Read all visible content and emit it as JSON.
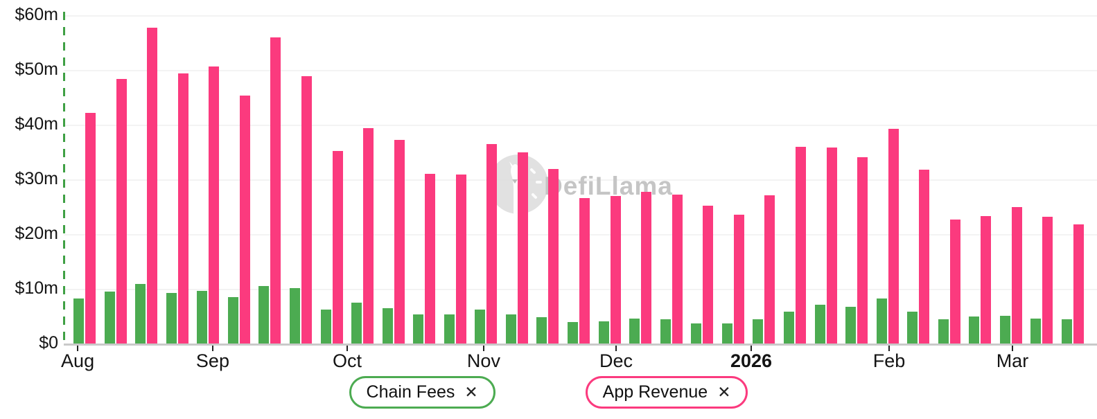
{
  "watermark": {
    "brand": "DefiLlama"
  },
  "legend": {
    "items": [
      {
        "label": "Chain Fees",
        "remove_symbol": "✕",
        "color": "#4cab51"
      },
      {
        "label": "App Revenue",
        "remove_symbol": "✕",
        "color": "#fb3a7e"
      }
    ]
  },
  "chart_data": {
    "type": "bar",
    "title": "",
    "unit": "USD millions per week",
    "ylim": [
      0,
      60
    ],
    "y_tick_labels": [
      "$0",
      "$10m",
      "$20m",
      "$30m",
      "$40m",
      "$50m",
      "$60m"
    ],
    "grid": "horizontal",
    "legend_position": "bottom",
    "x_description": "weekly bars from Aug to Mar; month ticks below axis",
    "month_ticks": [
      {
        "label": "Aug",
        "x_pct": 7.08,
        "bold": false
      },
      {
        "label": "Sep",
        "x_pct": 19.39,
        "bold": false
      },
      {
        "label": "Oct",
        "x_pct": 31.65,
        "bold": false
      },
      {
        "label": "Nov",
        "x_pct": 44.09,
        "bold": false
      },
      {
        "label": "Dec",
        "x_pct": 56.16,
        "bold": false
      },
      {
        "label": "2026",
        "x_pct": 68.48,
        "bold": true
      },
      {
        "label": "Feb",
        "x_pct": 81.05,
        "bold": false
      },
      {
        "label": "Mar",
        "x_pct": 92.29,
        "bold": false
      }
    ],
    "series": [
      {
        "name": "Chain Fees",
        "color": "#4cab51",
        "values": [
          8.3,
          9.6,
          11.0,
          9.4,
          9.8,
          8.6,
          10.6,
          10.2,
          6.3,
          7.6,
          6.6,
          5.4,
          5.5,
          6.3,
          5.5,
          4.9,
          4.0,
          4.2,
          4.7,
          4.5,
          3.8,
          3.8,
          4.6,
          5.9,
          7.2,
          6.8,
          8.3,
          5.9,
          4.6,
          5.1,
          5.2,
          4.7,
          4.6
        ]
      },
      {
        "name": "App Revenue",
        "color": "#fb3a7e",
        "values": [
          42.3,
          48.5,
          57.9,
          49.5,
          50.8,
          45.5,
          56.1,
          49.0,
          35.3,
          39.5,
          37.3,
          31.1,
          31.0,
          36.6,
          35.1,
          32.0,
          26.7,
          27.1,
          27.9,
          27.3,
          25.3,
          23.7,
          27.2,
          36.1,
          35.9,
          34.2,
          39.4,
          31.9,
          22.8,
          23.4,
          25.1,
          23.3,
          21.9
        ]
      }
    ],
    "axis_colors": {
      "dashed_y_axis": "#3fa044",
      "baseline": "#c9c9c9",
      "gridline": "#f3f3f3"
    }
  }
}
